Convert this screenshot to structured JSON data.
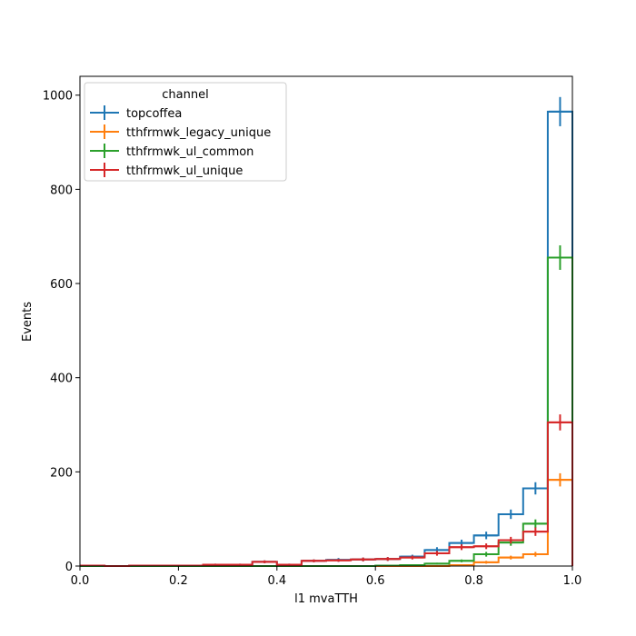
{
  "chart_data": {
    "type": "histogram",
    "xlabel": "l1 mvaTTH",
    "ylabel": "Events",
    "xlim": [
      0.0,
      1.0
    ],
    "ylim": [
      0,
      1040
    ],
    "x_ticks": [
      {
        "value": 0.0,
        "label": "0.0"
      },
      {
        "value": 0.2,
        "label": "0.2"
      },
      {
        "value": 0.4,
        "label": "0.4"
      },
      {
        "value": 0.6,
        "label": "0.6"
      },
      {
        "value": 0.8,
        "label": "0.8"
      },
      {
        "value": 1.0,
        "label": "1.0"
      }
    ],
    "y_ticks": [
      {
        "value": 0,
        "label": "0"
      },
      {
        "value": 200,
        "label": "200"
      },
      {
        "value": 400,
        "label": "400"
      },
      {
        "value": 600,
        "label": "600"
      },
      {
        "value": 800,
        "label": "800"
      },
      {
        "value": 1000,
        "label": "1000"
      }
    ],
    "grid": false,
    "legend": {
      "title": "channel",
      "placement": "top-left"
    },
    "bin_edges": [
      0.0,
      0.05,
      0.1,
      0.15,
      0.2,
      0.25,
      0.3,
      0.35,
      0.4,
      0.45,
      0.5,
      0.55,
      0.6,
      0.65,
      0.7,
      0.75,
      0.8,
      0.85,
      0.9,
      0.95,
      1.0
    ],
    "series": [
      {
        "name": "topcoffea",
        "color": "#1f77b4",
        "values": [
          1,
          0,
          1,
          1,
          1,
          3,
          3,
          9,
          3,
          11,
          13,
          14,
          15,
          20,
          34,
          49,
          65,
          110,
          165,
          965
        ],
        "errors": [
          1,
          0,
          1,
          1,
          1,
          2,
          2,
          3,
          2,
          3,
          4,
          4,
          4,
          4,
          6,
          7,
          8,
          10,
          13,
          31
        ]
      },
      {
        "name": "tthfrmwk_legacy_unique",
        "color": "#ff7f0e",
        "values": [
          0,
          0,
          0,
          0,
          0,
          0,
          0,
          0,
          0,
          0,
          0,
          0,
          0,
          0,
          0,
          2,
          8,
          18,
          25,
          183
        ],
        "errors": [
          0,
          0,
          0,
          0,
          0,
          0,
          0,
          0,
          0,
          0,
          0,
          0,
          0,
          0,
          0,
          1,
          3,
          4,
          5,
          14
        ]
      },
      {
        "name": "tthfrmwk_ul_common",
        "color": "#2ca02c",
        "values": [
          0,
          0,
          0,
          0,
          0,
          0,
          0,
          0,
          0,
          0,
          0,
          0,
          1,
          2,
          5,
          11,
          25,
          50,
          90,
          655
        ],
        "errors": [
          0,
          0,
          0,
          0,
          0,
          0,
          0,
          0,
          1,
          1,
          1,
          1,
          1,
          1,
          2,
          3,
          5,
          7,
          9,
          26
        ]
      },
      {
        "name": "tthfrmwk_ul_unique",
        "color": "#d62728",
        "values": [
          1,
          0,
          1,
          1,
          1,
          3,
          3,
          9,
          3,
          11,
          12,
          14,
          15,
          18,
          27,
          40,
          42,
          55,
          73,
          305
        ],
        "errors": [
          1,
          0,
          1,
          1,
          1,
          2,
          2,
          3,
          2,
          3,
          3,
          4,
          4,
          4,
          5,
          6,
          6,
          7,
          9,
          17
        ]
      }
    ]
  }
}
